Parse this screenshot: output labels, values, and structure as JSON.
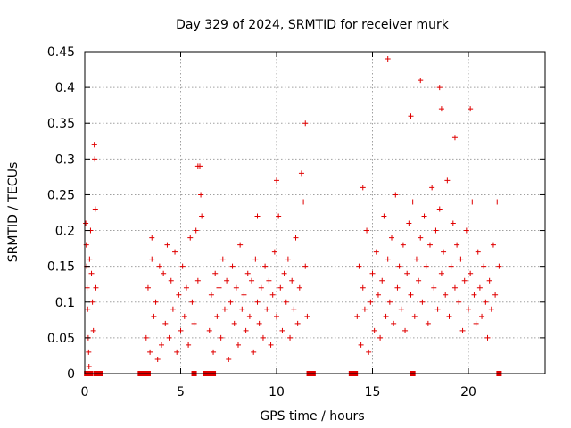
{
  "chart_data": {
    "type": "scatter",
    "title": "Day 329 of 2024, SRMTID for receiver murk",
    "xlabel": "GPS time / hours",
    "ylabel": "SRMTID / TECUs",
    "xlim": [
      0,
      24
    ],
    "ylim": [
      0,
      0.45
    ],
    "xticks": [
      0,
      5,
      10,
      15,
      20
    ],
    "yticks": [
      0,
      0.05,
      0.1,
      0.15,
      0.2,
      0.25,
      0.3,
      0.35,
      0.4,
      0.45
    ],
    "xtick_labels": [
      "0",
      "5",
      "10",
      "15",
      "20"
    ],
    "ytick_labels": [
      "0",
      "0.05",
      "0.1",
      "0.15",
      "0.2",
      "0.25",
      "0.3",
      "0.35",
      "0.4",
      "0.45"
    ],
    "grid": true,
    "marker": "+",
    "color": "#e00000",
    "series": [
      {
        "name": "SRMTID",
        "x": [
          0.05,
          0.08,
          0.1,
          0.12,
          0.15,
          0.18,
          0.2,
          0.22,
          0.25,
          0.3,
          0.35,
          0.4,
          0.45,
          0.5,
          0.52,
          0.55,
          0.58,
          3.2,
          3.3,
          3.4,
          3.5,
          3.6,
          3.7,
          3.8,
          3.9,
          4.0,
          4.1,
          4.2,
          4.3,
          4.4,
          4.5,
          4.6,
          4.7,
          4.8,
          4.9,
          5.0,
          5.1,
          5.2,
          5.3,
          5.4,
          5.5,
          5.6,
          5.7,
          5.8,
          5.9,
          6.0,
          6.05,
          6.1,
          6.5,
          6.6,
          6.7,
          6.8,
          6.9,
          7.0,
          7.1,
          7.2,
          7.3,
          7.4,
          7.5,
          7.6,
          7.7,
          7.8,
          7.9,
          8.0,
          8.1,
          8.2,
          8.3,
          8.4,
          8.5,
          8.6,
          8.7,
          8.8,
          8.9,
          9.0,
          9.1,
          9.2,
          9.3,
          9.4,
          9.5,
          9.6,
          9.7,
          9.8,
          9.9,
          10.0,
          10.1,
          10.2,
          10.3,
          10.4,
          10.5,
          10.6,
          10.7,
          10.8,
          10.9,
          11.0,
          11.1,
          11.2,
          11.3,
          11.4,
          11.5,
          11.6,
          14.2,
          14.3,
          14.4,
          14.5,
          14.6,
          14.7,
          14.8,
          14.9,
          15.0,
          15.1,
          15.2,
          15.3,
          15.4,
          15.5,
          15.6,
          15.7,
          15.8,
          15.9,
          16.0,
          16.1,
          16.2,
          16.3,
          16.4,
          16.5,
          16.6,
          16.7,
          16.8,
          16.9,
          17.0,
          17.1,
          17.2,
          17.3,
          17.4,
          17.5,
          17.6,
          17.7,
          17.8,
          17.9,
          18.0,
          18.1,
          18.2,
          18.3,
          18.4,
          18.5,
          18.6,
          18.7,
          18.8,
          18.9,
          19.0,
          19.1,
          19.2,
          19.3,
          19.4,
          19.5,
          19.6,
          19.7,
          19.8,
          19.9,
          20.0,
          20.1,
          20.2,
          20.3,
          20.4,
          20.5,
          20.6,
          20.7,
          20.8,
          20.9,
          21.0,
          21.1,
          21.2,
          21.3,
          21.4,
          21.5,
          21.6,
          15.8,
          17.0,
          17.5,
          18.5,
          18.6,
          19.3,
          20.1,
          11.5,
          5.9,
          10.0,
          0.5,
          14.5,
          3.5,
          9.0
        ],
        "y": [
          0.21,
          0.18,
          0.15,
          0.12,
          0.09,
          0.05,
          0.03,
          0.01,
          0.16,
          0.2,
          0.14,
          0.1,
          0.06,
          0.32,
          0.3,
          0.23,
          0.12,
          0.05,
          0.12,
          0.03,
          0.16,
          0.08,
          0.1,
          0.02,
          0.15,
          0.04,
          0.14,
          0.07,
          0.18,
          0.05,
          0.13,
          0.09,
          0.17,
          0.03,
          0.11,
          0.06,
          0.15,
          0.08,
          0.12,
          0.04,
          0.19,
          0.1,
          0.07,
          0.2,
          0.13,
          0.29,
          0.25,
          0.22,
          0.06,
          0.11,
          0.03,
          0.14,
          0.08,
          0.12,
          0.05,
          0.16,
          0.09,
          0.13,
          0.02,
          0.1,
          0.15,
          0.07,
          0.12,
          0.04,
          0.18,
          0.09,
          0.11,
          0.06,
          0.14,
          0.08,
          0.13,
          0.03,
          0.16,
          0.1,
          0.07,
          0.12,
          0.05,
          0.15,
          0.09,
          0.13,
          0.04,
          0.11,
          0.17,
          0.08,
          0.22,
          0.12,
          0.06,
          0.14,
          0.1,
          0.16,
          0.05,
          0.13,
          0.09,
          0.19,
          0.07,
          0.12,
          0.28,
          0.24,
          0.15,
          0.08,
          0.08,
          0.15,
          0.04,
          0.12,
          0.09,
          0.2,
          0.03,
          0.1,
          0.14,
          0.06,
          0.17,
          0.11,
          0.05,
          0.13,
          0.22,
          0.08,
          0.16,
          0.1,
          0.19,
          0.07,
          0.25,
          0.12,
          0.15,
          0.09,
          0.18,
          0.06,
          0.14,
          0.21,
          0.11,
          0.24,
          0.08,
          0.16,
          0.13,
          0.19,
          0.1,
          0.22,
          0.15,
          0.07,
          0.18,
          0.26,
          0.12,
          0.2,
          0.09,
          0.23,
          0.14,
          0.17,
          0.11,
          0.27,
          0.08,
          0.15,
          0.21,
          0.12,
          0.18,
          0.1,
          0.16,
          0.06,
          0.13,
          0.2,
          0.09,
          0.14,
          0.24,
          0.11,
          0.07,
          0.17,
          0.12,
          0.08,
          0.15,
          0.1,
          0.05,
          0.13,
          0.09,
          0.18,
          0.11,
          0.24,
          0.15,
          0.44,
          0.36,
          0.41,
          0.4,
          0.37,
          0.33,
          0.37,
          0.35,
          0.29,
          0.27,
          0.32,
          0.26,
          0.19,
          0.22
        ]
      }
    ],
    "baseline_markers_x": [
      0.1,
      0.3,
      0.6,
      0.8,
      2.9,
      3.1,
      3.3,
      5.7,
      6.3,
      6.5,
      6.7,
      11.7,
      11.9,
      13.9,
      14.1,
      17.1,
      21.6
    ]
  }
}
